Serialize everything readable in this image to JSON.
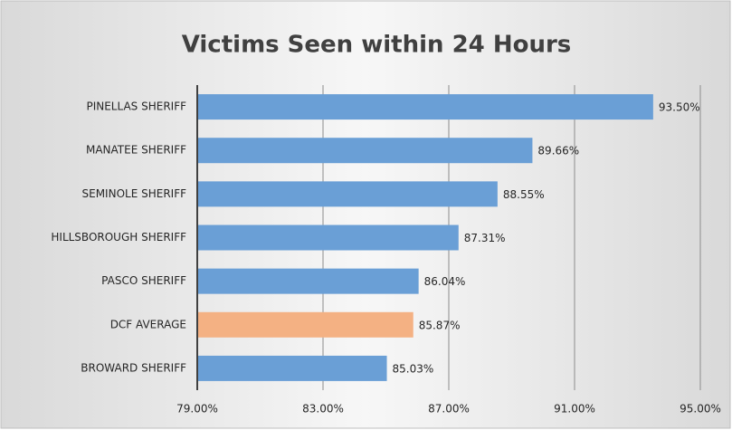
{
  "chart_data": {
    "type": "bar",
    "orientation": "horizontal",
    "title": "Victims Seen within 24 Hours",
    "categories": [
      "PINELLAS SHERIFF",
      "MANATEE SHERIFF",
      "SEMINOLE SHERIFF",
      "HILLSBOROUGH SHERIFF",
      "PASCO SHERIFF",
      "DCF AVERAGE",
      "BROWARD SHERIFF"
    ],
    "values": [
      93.5,
      89.66,
      88.55,
      87.31,
      86.04,
      85.87,
      85.03
    ],
    "value_labels": [
      "93.50%",
      "89.66%",
      "88.55%",
      "87.31%",
      "86.04%",
      "85.87%",
      "85.03%"
    ],
    "colors": [
      "#6a9fd6",
      "#6a9fd6",
      "#6a9fd6",
      "#6a9fd6",
      "#6a9fd6",
      "#f4b183",
      "#6a9fd6"
    ],
    "xlim": [
      79,
      95
    ],
    "xticks": [
      {
        "value": 79,
        "label": "79.00%"
      },
      {
        "value": 83,
        "label": "83.00%"
      },
      {
        "value": 87,
        "label": "87.00%"
      },
      {
        "value": 91,
        "label": "91.00%"
      },
      {
        "value": 95,
        "label": "95.00%"
      }
    ],
    "grid": true
  }
}
